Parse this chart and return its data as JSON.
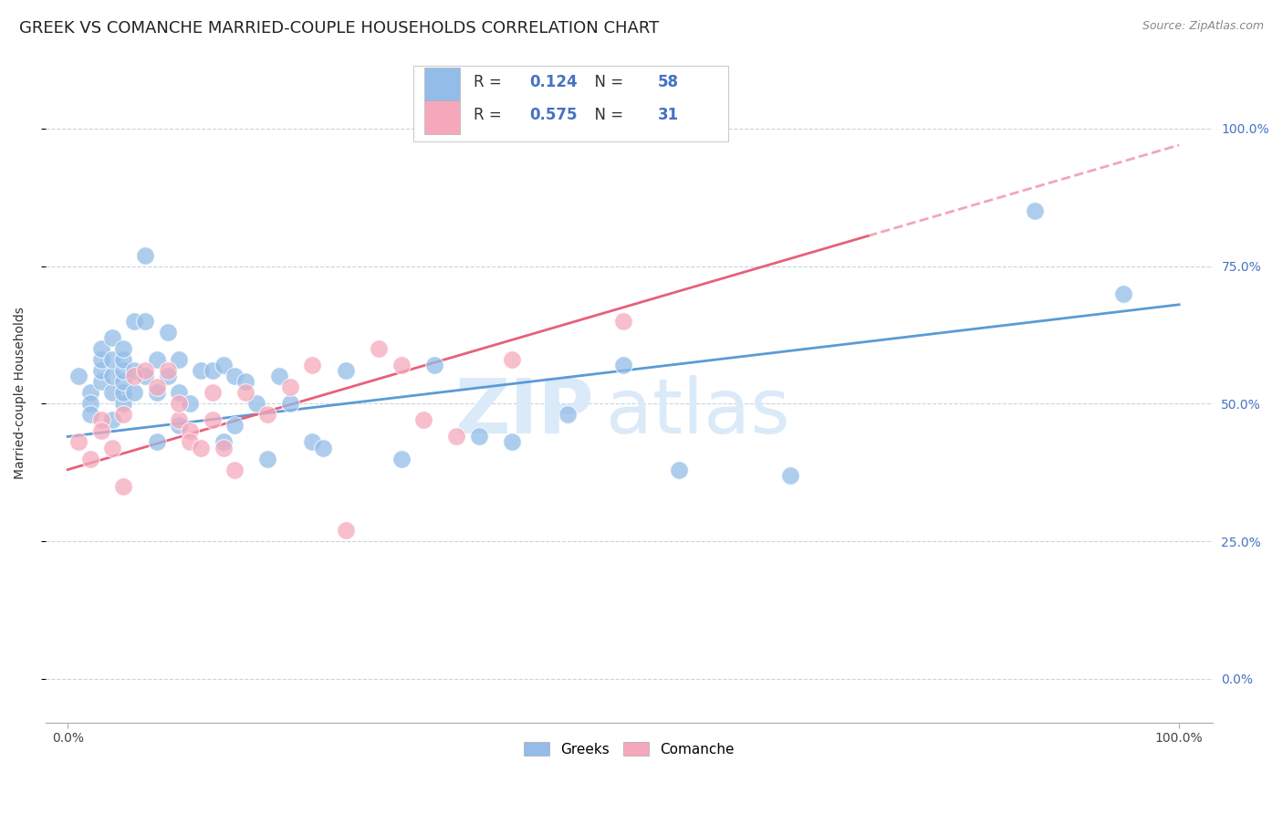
{
  "title": "GREEK VS COMANCHE MARRIED-COUPLE HOUSEHOLDS CORRELATION CHART",
  "source": "Source: ZipAtlas.com",
  "ylabel": "Married-couple Households",
  "legend_greek_R": "0.124",
  "legend_greek_N": "58",
  "legend_comanche_R": "0.575",
  "legend_comanche_N": "31",
  "greek_color": "#93bde8",
  "comanche_color": "#f5a8bb",
  "greek_line_color": "#5a9bd5",
  "comanche_line_color": "#e8607a",
  "watermark_color": "#daeaf8",
  "background_color": "#ffffff",
  "grid_color": "#c8d4e0",
  "title_fontsize": 13,
  "axis_label_fontsize": 10,
  "tick_label_fontsize": 10,
  "legend_fontsize": 12,
  "greek_x": [
    1,
    2,
    2,
    2,
    3,
    3,
    3,
    3,
    4,
    4,
    4,
    4,
    4,
    5,
    5,
    5,
    5,
    5,
    5,
    6,
    6,
    6,
    7,
    7,
    7,
    8,
    8,
    8,
    9,
    9,
    10,
    10,
    10,
    11,
    12,
    13,
    14,
    14,
    15,
    15,
    16,
    18,
    20,
    22,
    23,
    25,
    30,
    33,
    37,
    40,
    45,
    50,
    55,
    65,
    87,
    95,
    17,
    19
  ],
  "greek_y": [
    55,
    52,
    50,
    48,
    54,
    56,
    58,
    60,
    47,
    52,
    55,
    58,
    62,
    50,
    52,
    54,
    56,
    58,
    60,
    52,
    56,
    65,
    55,
    65,
    77,
    43,
    52,
    58,
    55,
    63,
    46,
    52,
    58,
    50,
    56,
    56,
    43,
    57,
    55,
    46,
    54,
    40,
    50,
    43,
    42,
    56,
    40,
    57,
    44,
    43,
    48,
    57,
    38,
    37,
    85,
    70,
    50,
    55
  ],
  "comanche_x": [
    1,
    2,
    3,
    3,
    4,
    5,
    5,
    6,
    7,
    8,
    9,
    10,
    10,
    11,
    11,
    12,
    13,
    13,
    14,
    15,
    16,
    18,
    20,
    22,
    25,
    28,
    30,
    32,
    35,
    40,
    50
  ],
  "comanche_y": [
    43,
    40,
    47,
    45,
    42,
    35,
    48,
    55,
    56,
    53,
    56,
    47,
    50,
    45,
    43,
    42,
    47,
    52,
    42,
    38,
    52,
    48,
    53,
    57,
    27,
    60,
    57,
    47,
    44,
    58,
    65
  ],
  "greek_trend": [
    44,
    68
  ],
  "comanche_trend": [
    38,
    97
  ],
  "comanche_dash_from": 72
}
